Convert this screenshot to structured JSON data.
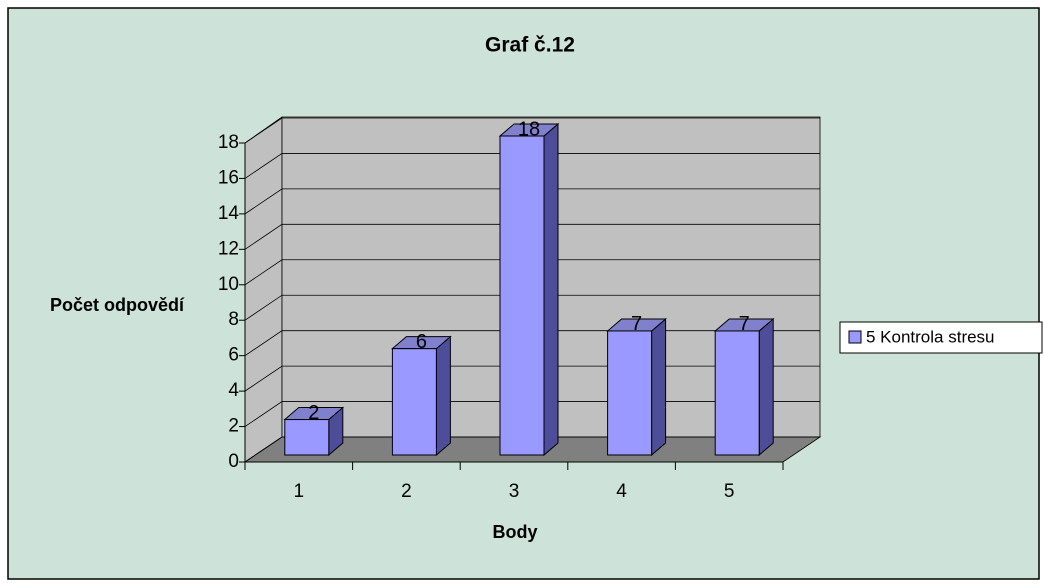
{
  "chart_data": {
    "type": "bar3d",
    "title": "Graf č.12",
    "y_label": "Počet odpovědí",
    "x_label": "Body",
    "categories": [
      "1",
      "2",
      "3",
      "4",
      "5"
    ],
    "series": [
      {
        "name": "5 Kontrola stresu",
        "color": "#9999ff",
        "values": [
          2,
          6,
          18,
          7,
          7
        ]
      }
    ],
    "ylim": [
      0,
      18
    ],
    "yticks": [
      0,
      2,
      4,
      6,
      8,
      10,
      12,
      14,
      16,
      18
    ],
    "grid": true,
    "legend": "right"
  }
}
